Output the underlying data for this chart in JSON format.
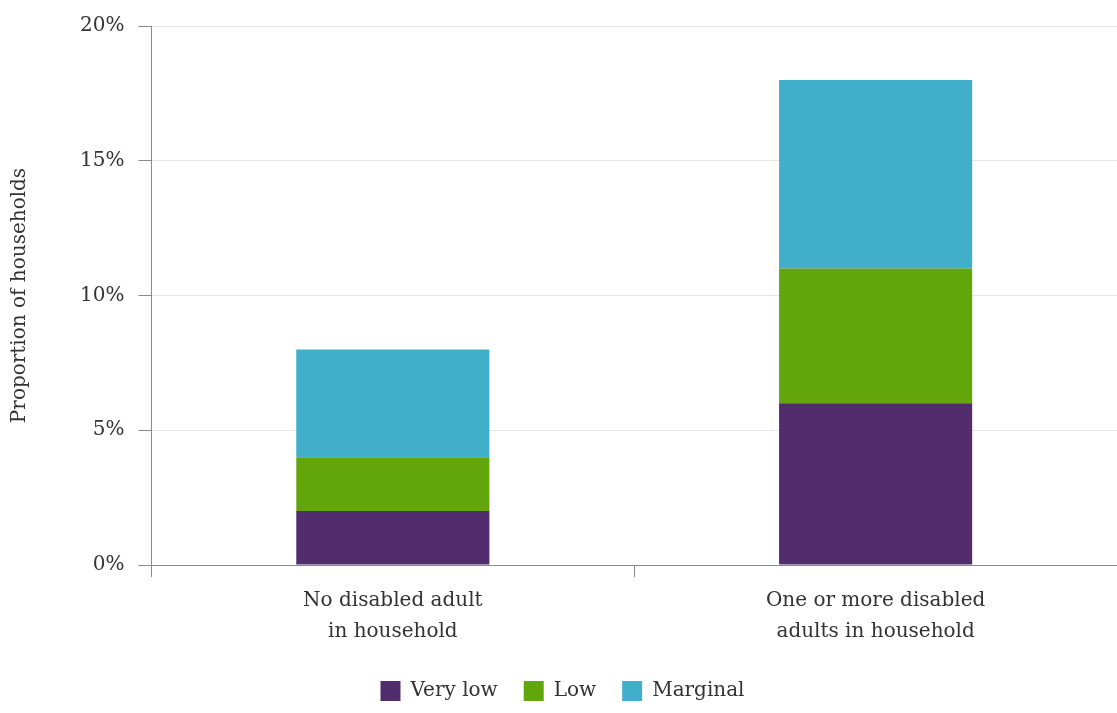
{
  "chart_data": {
    "type": "bar",
    "ylabel": "Proportion of households",
    "categories": [
      "No disabled adult in household",
      "One or more disabled adults in household"
    ],
    "stacked": true,
    "series": [
      {
        "name": "Very low",
        "color": "#522d6d",
        "values": [
          2,
          6
        ]
      },
      {
        "name": "Low",
        "color": "#63a60b",
        "values": [
          2,
          5
        ]
      },
      {
        "name": "Marginal",
        "color": "#41aeca",
        "values": [
          4,
          7
        ]
      }
    ],
    "ylim": [
      0,
      20
    ],
    "yticks": [
      {
        "value": 0,
        "label": "0%"
      },
      {
        "value": 5,
        "label": "5%"
      },
      {
        "value": 10,
        "label": "10%"
      },
      {
        "value": 15,
        "label": "15%"
      },
      {
        "value": 20,
        "label": "20%"
      }
    ],
    "grid": "y",
    "legend": "bottom"
  }
}
